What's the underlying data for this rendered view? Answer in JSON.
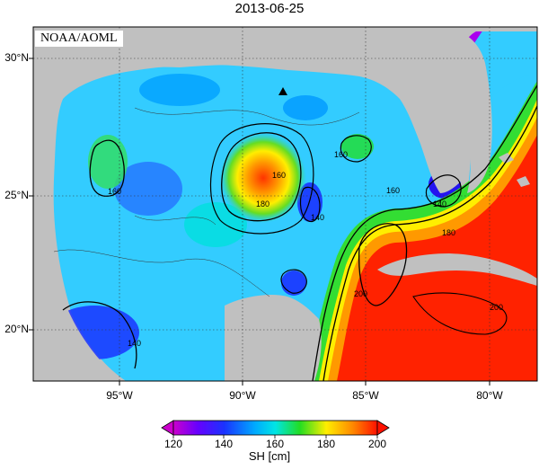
{
  "title": "2013-06-25",
  "credit": "NOAA/AOML",
  "colorbar": {
    "label": "SH [cm]",
    "ticks": [
      "120",
      "140",
      "160",
      "180",
      "200"
    ],
    "min": 120,
    "max": 200
  },
  "axes": {
    "latitude_labels": [
      "30°N",
      "25°N",
      "20°N"
    ],
    "longitude_labels": [
      "95°W",
      "90°W",
      "85°W",
      "80°W"
    ]
  },
  "contour_labels": [
    "160",
    "160",
    "160",
    "180",
    "140",
    "160",
    "180",
    "140",
    "200",
    "200",
    "140"
  ],
  "marker": "triangle-marker",
  "colors": {
    "land": "#c0c0c0",
    "low": "#9900cc",
    "mid": "#00e5e5",
    "high": "#ff1a00"
  }
}
